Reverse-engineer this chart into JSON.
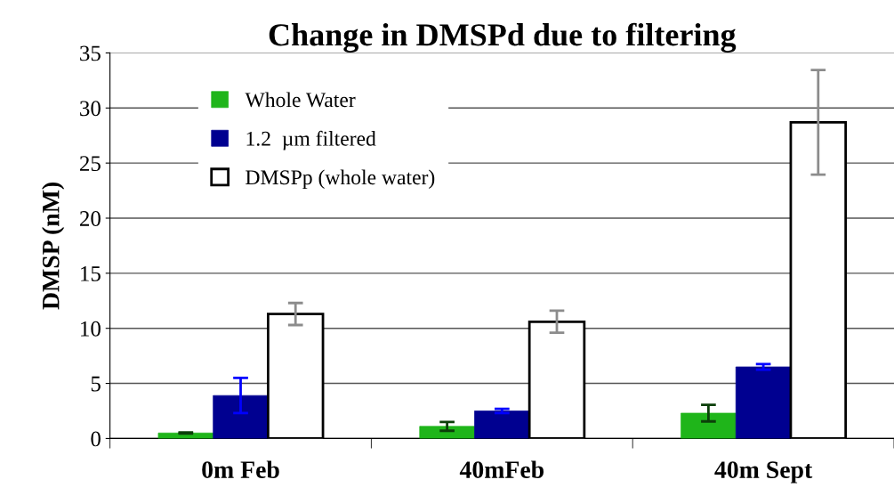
{
  "chart_data": {
    "type": "bar",
    "title": "Change in DMSPd due to filtering",
    "ylabel": "DMSP (nM)",
    "categories": [
      "0m Feb",
      "40mFeb",
      "40m Sept"
    ],
    "series": [
      {
        "name": "Whole Water",
        "color": "#1fb51a",
        "values": [
          0.5,
          1.1,
          2.3
        ],
        "errors": [
          0.05,
          0.4,
          0.75
        ]
      },
      {
        "name": "1.2  µm filtered",
        "color": "#000090",
        "values": [
          3.9,
          2.5,
          6.5
        ],
        "errors": [
          1.6,
          0.2,
          0.25
        ]
      },
      {
        "name": "DMSPp (whole water)",
        "color": "#ffffff",
        "values": [
          11.3,
          10.6,
          28.7
        ],
        "errors": [
          1.0,
          1.0,
          4.75
        ]
      }
    ],
    "ylim": [
      0,
      35
    ],
    "yticks": [
      0,
      5,
      10,
      15,
      20,
      25,
      30,
      35
    ],
    "grid": "y",
    "legend": "top left"
  }
}
